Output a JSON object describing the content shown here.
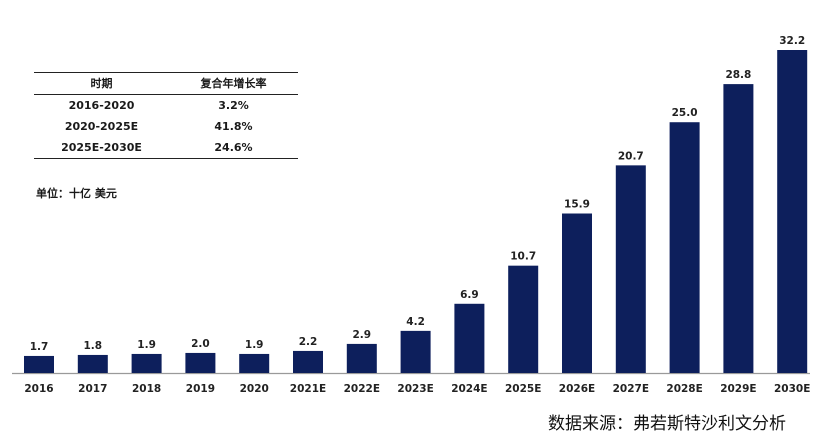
{
  "cagr_table": {
    "headers": [
      "时期",
      "复合年增长率"
    ],
    "rows": [
      [
        "2016-2020",
        "3.2%"
      ],
      [
        "2020-2025E",
        "41.8%"
      ],
      [
        "2025E-2030E",
        "24.6%"
      ]
    ]
  },
  "unit_label": "单位：十亿 美元",
  "source": "数据来源：弗若斯特沙利文分析",
  "colors": {
    "bar": "#0d1f5c",
    "axis": "#9a9a9a"
  },
  "chart_data": {
    "type": "bar",
    "categories": [
      "2016",
      "2017",
      "2018",
      "2019",
      "2020",
      "2021E",
      "2022E",
      "2023E",
      "2024E",
      "2025E",
      "2026E",
      "2027E",
      "2028E",
      "2029E",
      "2030E"
    ],
    "values": [
      1.7,
      1.8,
      1.9,
      2.0,
      1.9,
      2.2,
      2.9,
      4.2,
      6.9,
      10.7,
      15.9,
      20.7,
      25.0,
      28.8,
      32.2
    ],
    "value_labels": [
      "1.7",
      "1.8",
      "1.9",
      "2.0",
      "1.9",
      "2.2",
      "2.9",
      "4.2",
      "6.9",
      "10.7",
      "15.9",
      "20.7",
      "25.0",
      "28.8",
      "32.2"
    ],
    "ylim": [
      0,
      32.2
    ],
    "grid": false,
    "legend": "none"
  }
}
